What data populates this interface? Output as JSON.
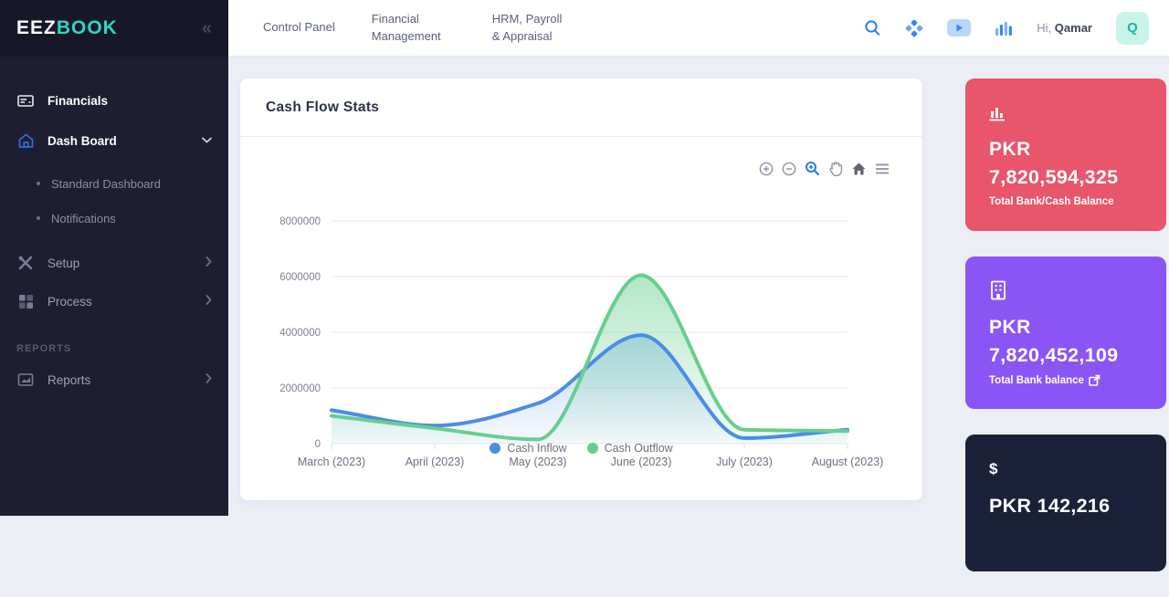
{
  "colors": {
    "sidebar_bg": "#1d1e31",
    "sidebar_header_bg": "#161728",
    "accent_blue": "#2f6fe4",
    "logo_teal": "#2fd5c2",
    "series_inflow": "#4a8ce8",
    "series_outflow": "#67ce8f",
    "card_red": "#e9556a",
    "card_purple": "#8b55f6",
    "card_dark": "#1b2138",
    "main_bg": "#eceef6"
  },
  "sidebar": {
    "logo": {
      "part1": "EEZ",
      "part2": "BOOK"
    },
    "collapse_icon": "«",
    "items": [
      {
        "label": "Financials"
      },
      {
        "label": "Dash Board"
      },
      {
        "label": "Standard Dashboard"
      },
      {
        "label": "Notifications"
      },
      {
        "label": "Setup"
      },
      {
        "label": "Process"
      },
      {
        "label": "Reports"
      }
    ],
    "section_label": "REPORTS"
  },
  "topbar": {
    "links": [
      "Control Panel",
      "Financial Management",
      "HRM, Payroll & Appraisal"
    ],
    "greeting_prefix": "Hi,",
    "greeting_name": "Qamar",
    "avatar_letter": "Q"
  },
  "chart_card": {
    "title": "Cash Flow Stats"
  },
  "chart_data": {
    "type": "area",
    "title": "Cash Flow Stats",
    "categories": [
      "March (2023)",
      "April (2023)",
      "May (2023)",
      "June (2023)",
      "July (2023)",
      "August (2023)"
    ],
    "series": [
      {
        "name": "Cash Inflow",
        "color": "#4a8ce8",
        "values": [
          1200000,
          650000,
          1450000,
          3900000,
          200000,
          500000
        ]
      },
      {
        "name": "Cash Outflow",
        "color": "#67ce8f",
        "values": [
          1000000,
          550000,
          150000,
          6050000,
          500000,
          450000
        ]
      }
    ],
    "ylim": [
      0,
      8000000
    ],
    "ytick_step": 2000000,
    "grid": true,
    "curve": "smooth",
    "legend_position": "bottom"
  },
  "stat_cards": [
    {
      "currency": "PKR",
      "amount": "7,820,594,325",
      "caption": "Total Bank/Cash Balance",
      "icon": "bar-chart-icon"
    },
    {
      "currency": "PKR",
      "amount": "7,820,452,109",
      "caption": "Total Bank balance",
      "icon": "bank-building-icon"
    },
    {
      "amount": "PKR 142,216",
      "icon": "dollar-icon"
    }
  ]
}
